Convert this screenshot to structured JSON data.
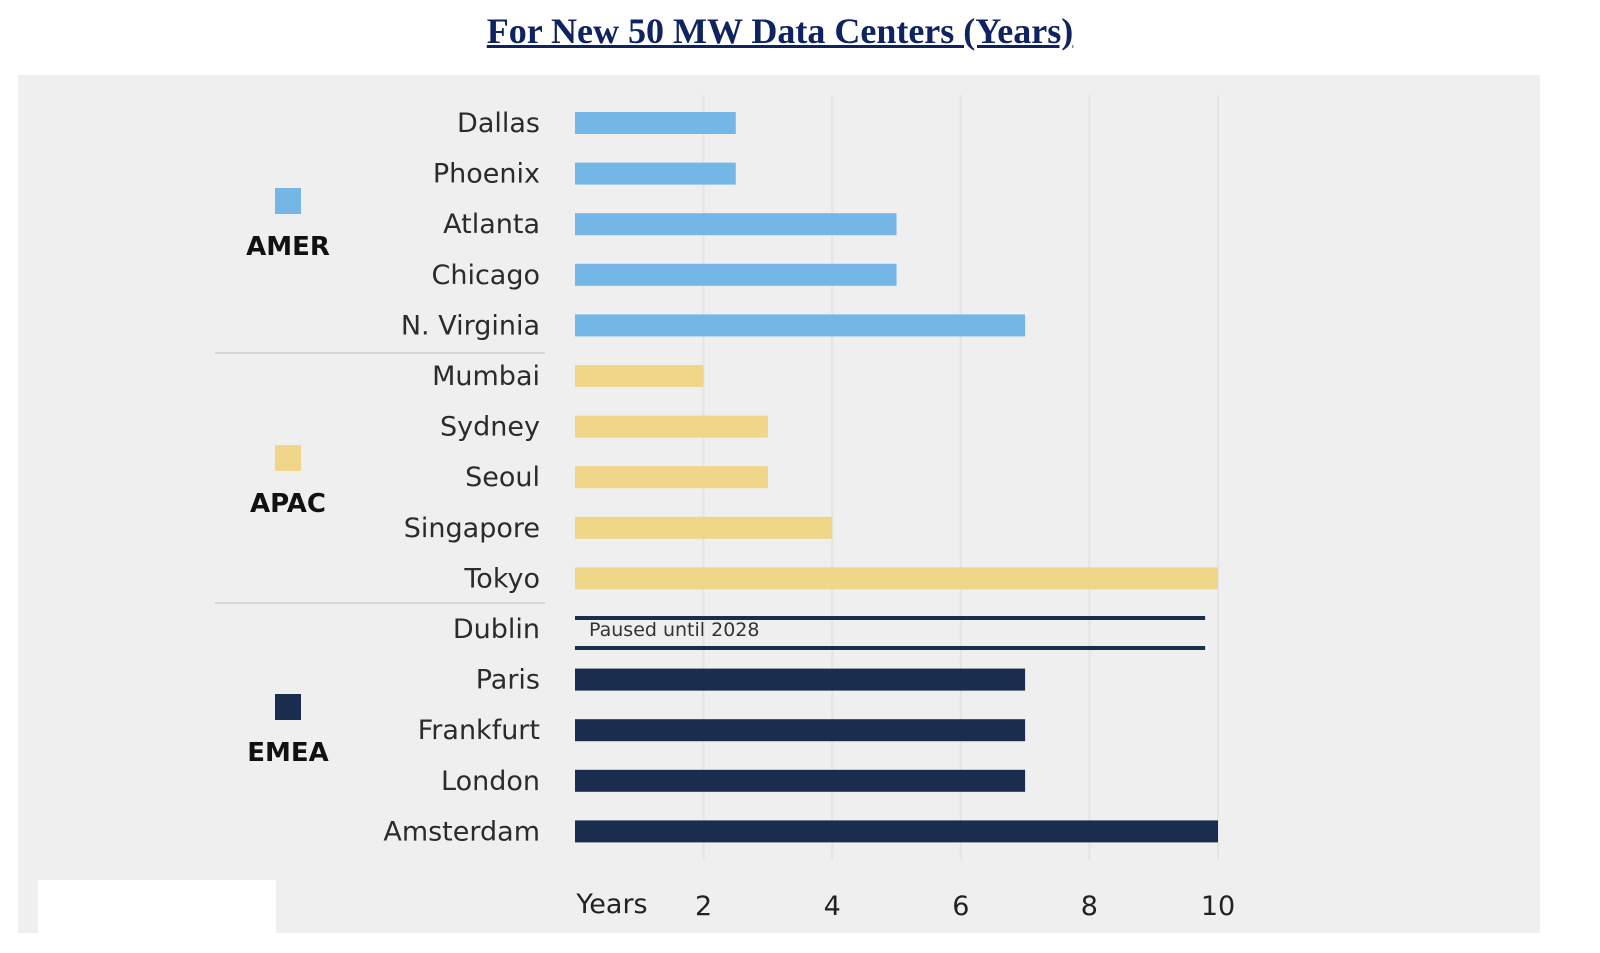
{
  "chart_data": {
    "type": "bar",
    "orientation": "horizontal",
    "title": "For New 50 MW Data Centers (Years)",
    "xlabel": "Years",
    "xlim": [
      0,
      10
    ],
    "xticks": [
      2,
      4,
      6,
      8,
      10
    ],
    "groups": [
      {
        "name": "AMER",
        "color": "#74b6e6"
      },
      {
        "name": "APAC",
        "color": "#f0d688"
      },
      {
        "name": "EMEA",
        "color": "#1b2d4f"
      }
    ],
    "categories": [
      "Dallas",
      "Phoenix",
      "Atlanta",
      "Chicago",
      "N. Virginia",
      "Mumbai",
      "Sydney",
      "Seoul",
      "Singapore",
      "Tokyo",
      "Dublin",
      "Paris",
      "Frankfurt",
      "London",
      "Amsterdam"
    ],
    "group_of": [
      "AMER",
      "AMER",
      "AMER",
      "AMER",
      "AMER",
      "APAC",
      "APAC",
      "APAC",
      "APAC",
      "APAC",
      "EMEA",
      "EMEA",
      "EMEA",
      "EMEA",
      "EMEA"
    ],
    "values": [
      2.5,
      2.5,
      5,
      5,
      7,
      2,
      3,
      3,
      4,
      10,
      9.8,
      7,
      7,
      7,
      10
    ],
    "annotations": [
      {
        "category": "Dublin",
        "text": "Paused until 2028",
        "style": "outline"
      }
    ]
  }
}
